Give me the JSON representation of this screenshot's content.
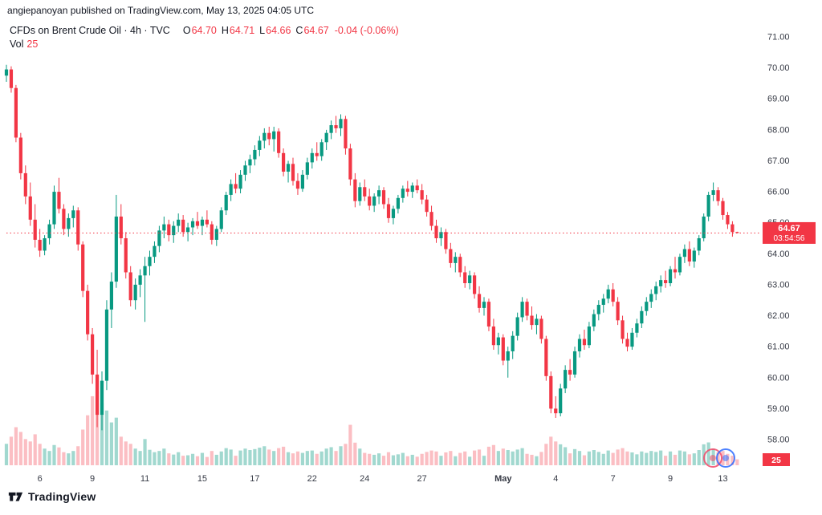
{
  "header": {
    "attribution": "angiepanoyan published on TradingView.com, May 13, 2025 04:05 UTC",
    "symbol_line": {
      "title": "CFDs on Brent Crude Oil · 4h · TVC",
      "ohlc": {
        "o_label": "O",
        "o": "64.70",
        "h_label": "H",
        "h": "64.71",
        "l_label": "L",
        "l": "64.66",
        "c_label": "C",
        "c": "64.67",
        "change": "-0.04 (-0.06%)"
      }
    },
    "volume_line": {
      "label": "Vol",
      "value": "25"
    }
  },
  "last_price": {
    "value": "64.67",
    "countdown": "03:54:56",
    "price": 64.67
  },
  "volume_label": {
    "value": "25"
  },
  "footer": {
    "brand": "TradingView"
  },
  "colors": {
    "up": "#089981",
    "down": "#f23645",
    "vol_up": "rgba(8,153,129,0.38)",
    "vol_down": "rgba(242,54,69,0.32)",
    "label_bg": "#f23645",
    "label_text": "#ffffff",
    "axis_text": "#363a45",
    "line": "#f23645",
    "watermark_pink": "#f24968",
    "watermark_blue": "#2e6bff"
  },
  "chart_data": {
    "type": "candlestick+volume",
    "title": "CFDs on Brent Crude Oil",
    "interval": "4h",
    "exchange": "TVC",
    "ylim": [
      58,
      71
    ],
    "yticks": [
      "71.00",
      "70.00",
      "69.00",
      "68.00",
      "67.00",
      "66.00",
      "65.00",
      "64.00",
      "63.00",
      "62.00",
      "61.00",
      "60.00",
      "59.00",
      "58.00"
    ],
    "xlabels": [
      {
        "text": "6",
        "i": 7
      },
      {
        "text": "9",
        "i": 18
      },
      {
        "text": "11",
        "i": 29
      },
      {
        "text": "15",
        "i": 41
      },
      {
        "text": "17",
        "i": 52
      },
      {
        "text": "22",
        "i": 64
      },
      {
        "text": "24",
        "i": 75
      },
      {
        "text": "27",
        "i": 87
      },
      {
        "text": "May",
        "i": 104
      },
      {
        "text": "4",
        "i": 115
      },
      {
        "text": "7",
        "i": 127
      },
      {
        "text": "9",
        "i": 139
      },
      {
        "text": "13",
        "i": 150
      }
    ],
    "candles": [
      [
        69.75,
        70.1,
        69.55,
        69.95,
        90
      ],
      [
        69.95,
        70.05,
        69.2,
        69.35,
        120
      ],
      [
        69.35,
        69.45,
        67.6,
        67.75,
        160
      ],
      [
        67.75,
        67.9,
        66.4,
        66.6,
        140
      ],
      [
        66.6,
        66.85,
        65.6,
        65.85,
        110
      ],
      [
        65.85,
        66.3,
        64.9,
        65.1,
        100
      ],
      [
        65.1,
        65.6,
        64.2,
        64.45,
        130
      ],
      [
        64.45,
        64.8,
        63.9,
        64.1,
        90
      ],
      [
        64.1,
        64.6,
        63.95,
        64.5,
        70
      ],
      [
        64.5,
        65.1,
        64.3,
        64.95,
        60
      ],
      [
        64.95,
        66.2,
        64.8,
        66.0,
        85
      ],
      [
        66.0,
        66.45,
        65.3,
        65.45,
        75
      ],
      [
        65.45,
        65.6,
        64.6,
        64.8,
        55
      ],
      [
        64.8,
        65.3,
        64.55,
        65.15,
        50
      ],
      [
        65.15,
        65.55,
        64.85,
        65.4,
        60
      ],
      [
        65.4,
        65.5,
        64.1,
        64.3,
        80
      ],
      [
        64.3,
        64.4,
        62.6,
        62.8,
        150
      ],
      [
        62.8,
        63.0,
        61.2,
        61.4,
        210
      ],
      [
        61.4,
        61.6,
        59.8,
        60.1,
        290
      ],
      [
        60.1,
        60.9,
        58.4,
        58.8,
        310
      ],
      [
        58.8,
        60.2,
        58.3,
        59.9,
        260
      ],
      [
        59.9,
        62.5,
        59.6,
        62.2,
        230
      ],
      [
        62.2,
        63.4,
        61.6,
        63.1,
        180
      ],
      [
        63.1,
        65.9,
        62.9,
        65.2,
        200
      ],
      [
        65.2,
        65.6,
        64.3,
        64.5,
        120
      ],
      [
        64.5,
        64.7,
        63.2,
        63.4,
        100
      ],
      [
        63.4,
        63.6,
        62.3,
        62.5,
        90
      ],
      [
        62.5,
        63.2,
        62.2,
        63.0,
        70
      ],
      [
        63.0,
        63.5,
        62.6,
        63.3,
        60
      ],
      [
        63.3,
        63.9,
        61.8,
        63.6,
        110
      ],
      [
        63.6,
        64.1,
        63.3,
        63.9,
        65
      ],
      [
        63.9,
        64.4,
        63.7,
        64.25,
        55
      ],
      [
        64.25,
        64.9,
        64.05,
        64.75,
        60
      ],
      [
        64.75,
        65.2,
        64.5,
        64.95,
        70
      ],
      [
        64.95,
        65.1,
        64.4,
        64.6,
        50
      ],
      [
        64.6,
        65.05,
        64.35,
        64.9,
        45
      ],
      [
        64.9,
        65.3,
        64.7,
        65.1,
        55
      ],
      [
        65.1,
        65.25,
        64.55,
        64.7,
        40
      ],
      [
        64.7,
        65.0,
        64.4,
        64.85,
        42
      ],
      [
        64.85,
        65.15,
        64.6,
        65.05,
        48
      ],
      [
        65.05,
        65.35,
        64.8,
        64.9,
        38
      ],
      [
        64.9,
        65.2,
        64.6,
        65.1,
        52
      ],
      [
        65.1,
        65.4,
        64.85,
        64.95,
        35
      ],
      [
        64.95,
        65.05,
        64.3,
        64.45,
        60
      ],
      [
        64.45,
        64.9,
        64.25,
        64.8,
        44
      ],
      [
        64.8,
        65.5,
        64.7,
        65.4,
        58
      ],
      [
        65.4,
        66.0,
        65.25,
        65.9,
        72
      ],
      [
        65.9,
        66.4,
        65.7,
        66.25,
        66
      ],
      [
        66.25,
        66.6,
        65.95,
        66.1,
        40
      ],
      [
        66.1,
        66.7,
        65.95,
        66.55,
        62
      ],
      [
        66.55,
        67.0,
        66.35,
        66.85,
        70
      ],
      [
        66.85,
        67.2,
        66.6,
        67.05,
        64
      ],
      [
        67.05,
        67.5,
        66.85,
        67.35,
        68
      ],
      [
        67.35,
        67.8,
        67.15,
        67.65,
        74
      ],
      [
        67.65,
        68.05,
        67.4,
        67.9,
        80
      ],
      [
        67.9,
        68.1,
        67.5,
        67.7,
        66
      ],
      [
        67.7,
        68.1,
        67.3,
        67.95,
        60
      ],
      [
        67.95,
        68.05,
        67.1,
        67.25,
        72
      ],
      [
        67.25,
        67.4,
        66.5,
        66.65,
        78
      ],
      [
        66.65,
        67.0,
        66.3,
        66.9,
        55
      ],
      [
        66.9,
        67.1,
        66.2,
        66.35,
        50
      ],
      [
        66.35,
        66.6,
        65.9,
        66.1,
        58
      ],
      [
        66.1,
        66.7,
        66.0,
        66.55,
        52
      ],
      [
        66.55,
        67.1,
        66.4,
        66.95,
        60
      ],
      [
        66.95,
        67.4,
        66.75,
        67.25,
        62
      ],
      [
        67.25,
        67.6,
        67.0,
        67.15,
        48
      ],
      [
        67.15,
        67.7,
        67.0,
        67.6,
        58
      ],
      [
        67.6,
        68.0,
        67.35,
        67.9,
        70
      ],
      [
        67.9,
        68.3,
        67.7,
        68.15,
        76
      ],
      [
        68.15,
        68.45,
        67.9,
        68.05,
        60
      ],
      [
        68.05,
        68.5,
        67.8,
        68.35,
        80
      ],
      [
        68.35,
        68.45,
        67.2,
        67.4,
        90
      ],
      [
        67.4,
        67.55,
        66.2,
        66.4,
        170
      ],
      [
        66.4,
        66.6,
        65.5,
        65.7,
        95
      ],
      [
        65.7,
        66.3,
        65.55,
        66.15,
        70
      ],
      [
        66.15,
        66.4,
        65.7,
        65.85,
        52
      ],
      [
        65.85,
        66.1,
        65.4,
        65.55,
        48
      ],
      [
        65.55,
        65.95,
        65.35,
        65.85,
        44
      ],
      [
        65.85,
        66.2,
        65.6,
        66.05,
        50
      ],
      [
        66.05,
        66.15,
        65.45,
        65.6,
        40
      ],
      [
        65.6,
        65.8,
        65.0,
        65.15,
        55
      ],
      [
        65.15,
        65.55,
        64.95,
        65.45,
        42
      ],
      [
        65.45,
        65.9,
        65.3,
        65.8,
        46
      ],
      [
        65.8,
        66.2,
        65.65,
        66.1,
        52
      ],
      [
        66.1,
        66.35,
        65.85,
        66.0,
        38
      ],
      [
        66.0,
        66.3,
        65.8,
        66.2,
        44
      ],
      [
        66.2,
        66.4,
        65.95,
        66.05,
        36
      ],
      [
        66.05,
        66.25,
        65.6,
        65.75,
        48
      ],
      [
        65.75,
        65.9,
        65.2,
        65.35,
        56
      ],
      [
        65.35,
        65.55,
        64.75,
        64.9,
        62
      ],
      [
        64.9,
        65.1,
        64.35,
        64.5,
        58
      ],
      [
        64.5,
        64.85,
        64.25,
        64.7,
        40
      ],
      [
        64.7,
        64.8,
        64.0,
        64.15,
        54
      ],
      [
        64.15,
        64.35,
        63.55,
        63.7,
        60
      ],
      [
        63.7,
        64.05,
        63.4,
        63.9,
        38
      ],
      [
        63.9,
        64.0,
        63.25,
        63.4,
        52
      ],
      [
        63.4,
        63.6,
        62.9,
        63.05,
        58
      ],
      [
        63.05,
        63.45,
        62.85,
        63.3,
        36
      ],
      [
        63.3,
        63.4,
        62.55,
        62.7,
        62
      ],
      [
        62.7,
        62.95,
        62.1,
        62.25,
        66
      ],
      [
        62.25,
        62.6,
        62.0,
        62.45,
        40
      ],
      [
        62.45,
        62.55,
        61.5,
        61.65,
        78
      ],
      [
        61.65,
        61.9,
        60.9,
        61.05,
        85
      ],
      [
        61.05,
        61.45,
        60.75,
        61.3,
        60
      ],
      [
        61.3,
        61.4,
        60.4,
        60.55,
        70
      ],
      [
        60.55,
        61.0,
        60.0,
        60.85,
        64
      ],
      [
        60.85,
        61.5,
        60.6,
        61.35,
        58
      ],
      [
        61.35,
        62.1,
        61.2,
        61.95,
        66
      ],
      [
        61.95,
        62.6,
        61.8,
        62.45,
        72
      ],
      [
        62.45,
        62.55,
        61.85,
        62.0,
        48
      ],
      [
        62.0,
        62.3,
        61.55,
        61.7,
        44
      ],
      [
        61.7,
        62.05,
        61.4,
        61.9,
        38
      ],
      [
        61.9,
        62.0,
        61.1,
        61.25,
        56
      ],
      [
        61.25,
        61.35,
        59.9,
        60.05,
        90
      ],
      [
        60.05,
        60.2,
        58.85,
        59.0,
        120
      ],
      [
        59.0,
        59.4,
        58.7,
        58.85,
        100
      ],
      [
        58.85,
        59.8,
        58.75,
        59.65,
        88
      ],
      [
        59.65,
        60.4,
        59.5,
        60.25,
        76
      ],
      [
        60.25,
        60.6,
        59.9,
        60.1,
        50
      ],
      [
        60.1,
        61.0,
        60.0,
        60.85,
        68
      ],
      [
        60.85,
        61.4,
        60.65,
        61.25,
        60
      ],
      [
        61.25,
        61.55,
        60.9,
        61.05,
        42
      ],
      [
        61.05,
        61.8,
        60.95,
        61.65,
        58
      ],
      [
        61.65,
        62.2,
        61.5,
        62.05,
        64
      ],
      [
        62.05,
        62.5,
        61.85,
        62.35,
        56
      ],
      [
        62.35,
        62.7,
        62.1,
        62.55,
        48
      ],
      [
        62.55,
        63.0,
        62.4,
        62.85,
        62
      ],
      [
        62.85,
        63.05,
        62.3,
        62.45,
        52
      ],
      [
        62.45,
        62.6,
        61.7,
        61.85,
        66
      ],
      [
        61.85,
        62.0,
        61.1,
        61.25,
        72
      ],
      [
        61.25,
        61.45,
        60.85,
        61.0,
        58
      ],
      [
        61.0,
        61.6,
        60.9,
        61.45,
        54
      ],
      [
        61.45,
        61.9,
        61.3,
        61.75,
        46
      ],
      [
        61.75,
        62.3,
        61.6,
        62.15,
        58
      ],
      [
        62.15,
        62.6,
        62.0,
        62.45,
        52
      ],
      [
        62.45,
        62.85,
        62.25,
        62.7,
        60
      ],
      [
        62.7,
        63.1,
        62.5,
        62.95,
        56
      ],
      [
        62.95,
        63.3,
        62.75,
        63.15,
        62
      ],
      [
        63.15,
        63.45,
        62.9,
        63.05,
        40
      ],
      [
        63.05,
        63.6,
        62.95,
        63.5,
        58
      ],
      [
        63.5,
        63.9,
        63.2,
        63.4,
        44
      ],
      [
        63.4,
        64.0,
        63.3,
        63.9,
        62
      ],
      [
        63.9,
        64.3,
        63.7,
        64.15,
        58
      ],
      [
        64.15,
        64.4,
        63.6,
        63.75,
        46
      ],
      [
        63.75,
        64.2,
        63.55,
        64.1,
        50
      ],
      [
        64.1,
        64.6,
        63.95,
        64.5,
        64
      ],
      [
        64.5,
        65.3,
        64.4,
        65.2,
        88
      ],
      [
        65.2,
        66.0,
        65.05,
        65.9,
        96
      ],
      [
        65.9,
        66.3,
        65.7,
        66.05,
        70
      ],
      [
        66.05,
        66.15,
        65.55,
        65.7,
        54
      ],
      [
        65.7,
        65.8,
        65.1,
        65.25,
        60
      ],
      [
        65.25,
        65.35,
        64.8,
        64.95,
        48
      ],
      [
        64.95,
        65.05,
        64.55,
        64.7,
        40
      ],
      [
        64.7,
        64.71,
        64.66,
        64.67,
        25
      ]
    ]
  }
}
